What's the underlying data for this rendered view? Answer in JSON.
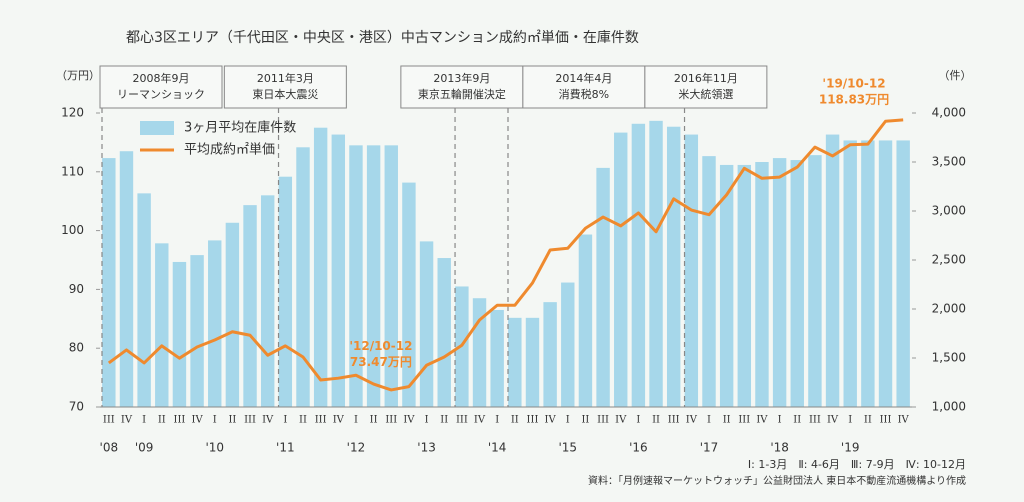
{
  "chart_data": {
    "type": "bar-line",
    "title": "都心3区エリア（千代田区・中央区・港区）中古マンション成約㎡単価・在庫件数",
    "y_label": "（万円）",
    "y2_label": "（件）",
    "categories": [
      "III",
      "IV",
      "I",
      "II",
      "III",
      "IV",
      "I",
      "II",
      "III",
      "IV",
      "I",
      "II",
      "III",
      "IV",
      "I",
      "II",
      "III",
      "IV",
      "I",
      "II",
      "III",
      "IV",
      "I",
      "II",
      "III",
      "IV",
      "I",
      "II",
      "III",
      "IV",
      "I",
      "II",
      "III",
      "IV",
      "I",
      "II",
      "III",
      "IV",
      "I",
      "II",
      "III",
      "IV",
      "I",
      "II",
      "III",
      "IV"
    ],
    "years": [
      "'08",
      null,
      "'09",
      null,
      null,
      null,
      "'10",
      null,
      null,
      null,
      "'11",
      null,
      null,
      null,
      "'12",
      null,
      null,
      null,
      "'13",
      null,
      null,
      null,
      "'14",
      null,
      null,
      null,
      "'15",
      null,
      null,
      null,
      "'16",
      null,
      null,
      null,
      "'17",
      null,
      null,
      null,
      "'18",
      null,
      null,
      null,
      "'19",
      null,
      null,
      null
    ],
    "events": [
      [
        "2008年9月",
        "リーマンショック"
      ],
      null,
      null,
      null,
      null,
      null,
      null,
      null,
      null,
      null,
      [
        "2011年3月",
        "東日本大震災"
      ],
      null,
      null,
      null,
      null,
      null,
      null,
      null,
      null,
      null,
      [
        "2013年9月",
        "東京五輪開催決定"
      ],
      null,
      null,
      [
        "2014年4月",
        "消費税8%"
      ],
      null,
      null,
      null,
      null,
      null,
      null,
      null,
      null,
      null,
      [
        "2016年11月",
        "米大統領選"
      ],
      null,
      null,
      null,
      null,
      null,
      null,
      null,
      null,
      null,
      null,
      null,
      null
    ],
    "series": [
      {
        "name": "3ヶ月平均在庫件数",
        "type": "bar",
        "axis": "y2",
        "color": "#a6d7ea",
        "values": [
          3540,
          3610,
          3180,
          2670,
          2480,
          2550,
          2700,
          2880,
          3060,
          3160,
          3350,
          3650,
          3850,
          3780,
          3670,
          3670,
          3670,
          3290,
          2690,
          2520,
          2230,
          2110,
          1990,
          1910,
          1910,
          2070,
          2270,
          2760,
          3440,
          3800,
          3890,
          3920,
          3860,
          3780,
          3560,
          3470,
          3470,
          3500,
          3540,
          3520,
          3570,
          3780,
          3720,
          3720,
          3720,
          3720
        ]
      },
      {
        "name": "平均成約㎡単価",
        "type": "line",
        "color": "#ef8a2e",
        "values": [
          77.5,
          79.7,
          77.5,
          80.4,
          78.3,
          80.2,
          81.4,
          82.8,
          82.2,
          78.8,
          80.4,
          78.5,
          74.6,
          74.9,
          75.4,
          73.9,
          72.9,
          73.47,
          77.1,
          78.5,
          80.5,
          84.8,
          87.3,
          87.3,
          91.1,
          96.7,
          97.0,
          100.4,
          102.3,
          100.8,
          103.0,
          99.8,
          105.4,
          103.5,
          102.7,
          106.1,
          110.6,
          108.9,
          109.1,
          110.8,
          114.2,
          112.7,
          114.6,
          114.7,
          118.6,
          118.83
        ],
        "period_labels": [
          null,
          null,
          null,
          null,
          null,
          null,
          null,
          null,
          null,
          null,
          null,
          null,
          null,
          null,
          null,
          null,
          null,
          "'12/10-12",
          null,
          null,
          null,
          null,
          null,
          null,
          null,
          null,
          null,
          null,
          null,
          null,
          null,
          null,
          null,
          null,
          null,
          null,
          null,
          null,
          null,
          null,
          null,
          null,
          null,
          null,
          null,
          "'19/10-12"
        ],
        "value_labels": [
          null,
          null,
          null,
          null,
          null,
          null,
          null,
          null,
          null,
          null,
          null,
          null,
          null,
          null,
          null,
          null,
          null,
          "73.47万円",
          null,
          null,
          null,
          null,
          null,
          null,
          null,
          null,
          null,
          null,
          null,
          null,
          null,
          null,
          null,
          null,
          null,
          null,
          null,
          null,
          null,
          null,
          null,
          null,
          null,
          null,
          null,
          "118.83万円"
        ]
      }
    ],
    "ylim": [
      70,
      120
    ],
    "yticks": [
      70,
      80,
      90,
      100,
      110,
      120
    ],
    "y2lim": [
      1000,
      4000
    ],
    "y2ticks": [
      {
        "value": 1000,
        "label": "1,000"
      },
      {
        "value": 1500,
        "label": "1,500"
      },
      {
        "value": 2000,
        "label": "2,000"
      },
      {
        "value": 2500,
        "label": "2,500"
      },
      {
        "value": 3000,
        "label": "3,000"
      },
      {
        "value": 3500,
        "label": "3,500"
      },
      {
        "value": 4000,
        "label": "4,000"
      }
    ],
    "quarter_key": "Ⅰ: 1-3月　Ⅱ: 4-6月　Ⅲ: 7-9月　Ⅳ: 10-12月",
    "source": "資料：「月例速報マーケットウォッチ」公益財団法人 東日本不動産流通機構より作成"
  }
}
